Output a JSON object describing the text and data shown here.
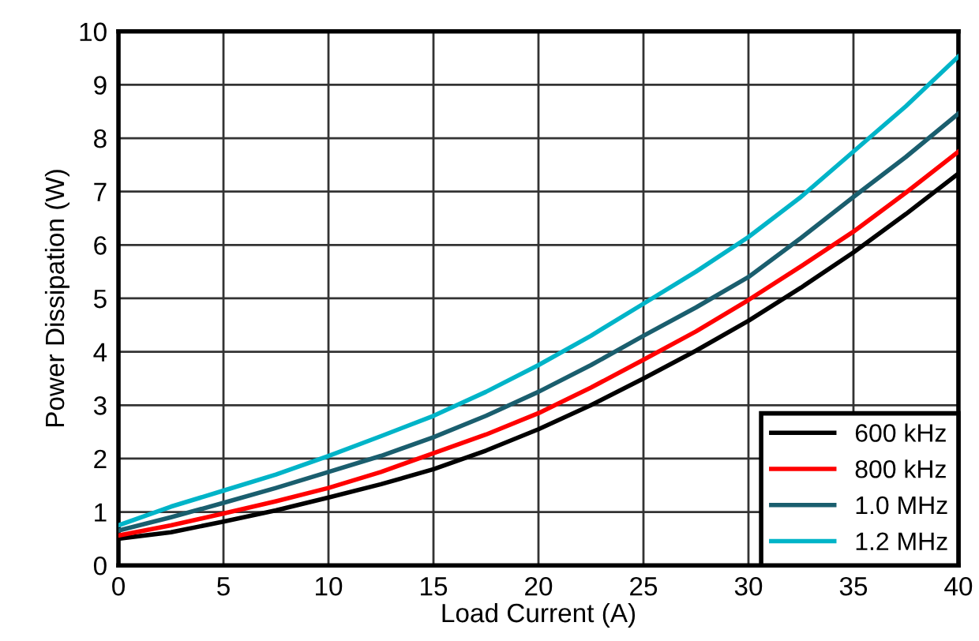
{
  "chart_data": {
    "type": "line",
    "xlabel": "Load Current (A)",
    "ylabel": "Power Dissipation (W)",
    "x": [
      0,
      2.5,
      5,
      7.5,
      10,
      12.5,
      15,
      17.5,
      20,
      22.5,
      25,
      27.5,
      30,
      32.5,
      35,
      37.5,
      40
    ],
    "series": [
      {
        "name": "600 kHz",
        "color": "#000000",
        "values": [
          0.5,
          0.62,
          0.82,
          1.03,
          1.27,
          1.52,
          1.8,
          2.15,
          2.55,
          3.0,
          3.5,
          4.02,
          4.58,
          5.2,
          5.86,
          6.58,
          7.34
        ]
      },
      {
        "name": "800 kHz",
        "color": "#ff0000",
        "values": [
          0.56,
          0.75,
          0.97,
          1.2,
          1.45,
          1.75,
          2.1,
          2.45,
          2.85,
          3.33,
          3.85,
          4.38,
          4.97,
          5.6,
          6.25,
          6.98,
          7.75
        ]
      },
      {
        "name": "1.0 MHz",
        "color": "#1a5e6e",
        "values": [
          0.65,
          0.9,
          1.17,
          1.45,
          1.75,
          2.05,
          2.4,
          2.8,
          3.25,
          3.75,
          4.3,
          4.83,
          5.4,
          6.13,
          6.9,
          7.65,
          8.46
        ]
      },
      {
        "name": "1.2 MHz",
        "color": "#00b4c8",
        "values": [
          0.75,
          1.1,
          1.4,
          1.7,
          2.05,
          2.42,
          2.8,
          3.25,
          3.75,
          4.3,
          4.9,
          5.5,
          6.15,
          6.9,
          7.75,
          8.6,
          9.53
        ]
      }
    ],
    "xlim": [
      0,
      40
    ],
    "ylim": [
      0,
      10
    ],
    "xticks": [
      0,
      5,
      10,
      15,
      20,
      25,
      30,
      35,
      40
    ],
    "yticks": [
      0,
      1,
      2,
      3,
      4,
      5,
      6,
      7,
      8,
      9,
      10
    ],
    "grid": true,
    "legend": "bottom right",
    "marker": "none",
    "line_style": "solid"
  }
}
